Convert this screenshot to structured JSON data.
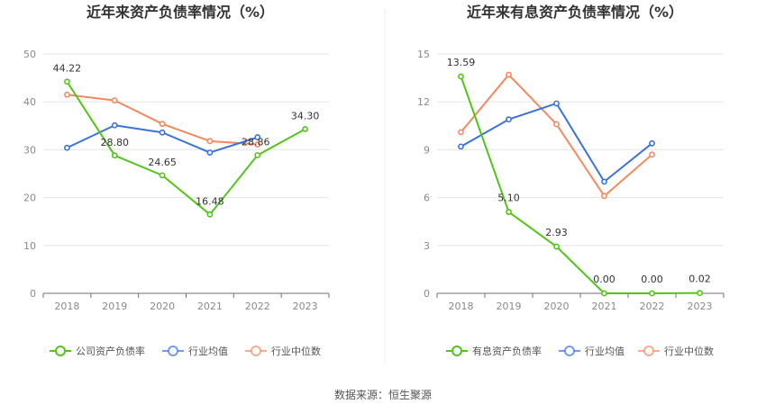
{
  "source_label": "数据来源：恒生聚源",
  "chart_data": [
    {
      "type": "line",
      "title": "近年来资产负债率情况（%）",
      "categories": [
        "2018",
        "2019",
        "2020",
        "2021",
        "2022",
        "2023"
      ],
      "ylim": [
        0,
        50
      ],
      "yticks": [
        0,
        10,
        20,
        30,
        40,
        50
      ],
      "grid": true,
      "legend_position": "bottom",
      "series": [
        {
          "name": "公司资产负债率",
          "color": "#52c41a",
          "values": [
            44.22,
            28.8,
            24.65,
            16.48,
            28.86,
            34.3
          ],
          "labels": [
            "44.22",
            "28.80",
            "24.65",
            "16.48",
            "28.86",
            "34.30"
          ]
        },
        {
          "name": "行业均值",
          "color": "#3b72dd",
          "values": [
            30.4,
            35.1,
            33.6,
            29.4,
            32.6,
            null
          ],
          "labels": null
        },
        {
          "name": "行业中位数",
          "color": "#f4895f",
          "values": [
            41.5,
            40.3,
            35.4,
            31.8,
            31.1,
            null
          ],
          "labels": null
        }
      ]
    },
    {
      "type": "line",
      "title": "近年来有息资产负债率情况（%）",
      "categories": [
        "2018",
        "2019",
        "2020",
        "2021",
        "2022",
        "2023"
      ],
      "ylim": [
        0,
        15
      ],
      "yticks": [
        0,
        3,
        6,
        9,
        12,
        15
      ],
      "grid": true,
      "legend_position": "bottom",
      "series": [
        {
          "name": "有息资产负债率",
          "color": "#52c41a",
          "values": [
            13.59,
            5.1,
            2.93,
            0.0,
            0.0,
            0.02
          ],
          "labels": [
            "13.59",
            "5.10",
            "2.93",
            "0.00",
            "0.00",
            "0.02"
          ]
        },
        {
          "name": "行业均值",
          "color": "#3b72dd",
          "values": [
            9.2,
            10.9,
            11.9,
            7.0,
            9.4,
            null
          ],
          "labels": null
        },
        {
          "name": "行业中位数",
          "color": "#f4895f",
          "values": [
            10.1,
            13.7,
            10.6,
            6.1,
            8.7,
            null
          ],
          "labels": null
        }
      ]
    }
  ]
}
